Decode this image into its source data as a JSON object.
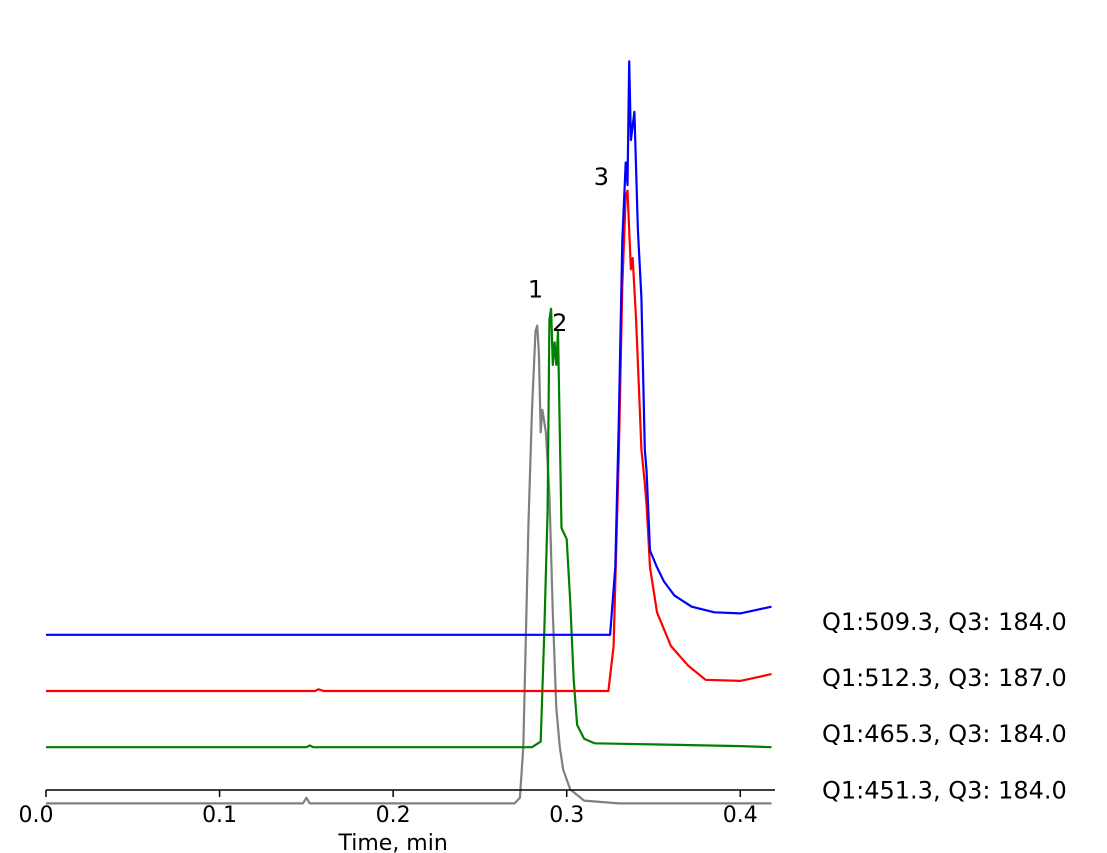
{
  "chart_data": {
    "type": "line",
    "xlabel": "Time, min",
    "ylabel": "",
    "xlim": [
      0.0,
      0.42
    ],
    "x_ticks": [
      0.0,
      0.1,
      0.2,
      0.3,
      0.4
    ],
    "x_tick_labels": [
      "0.0",
      "0.1",
      "0.2",
      "0.3",
      "0.4"
    ],
    "y_axis_shown": false,
    "grid": false,
    "layout": "stacked-offset traces",
    "series": [
      {
        "name": "Q1:509.3, Q3: 184.0",
        "color": "#0000ff",
        "baseline": 100,
        "points": [
          [
            0.0,
            100
          ],
          [
            0.31,
            100
          ],
          [
            0.325,
            100
          ],
          [
            0.328,
            220
          ],
          [
            0.33,
            480
          ],
          [
            0.332,
            800
          ],
          [
            0.334,
            940
          ],
          [
            0.335,
            900
          ],
          [
            0.336,
            1120
          ],
          [
            0.337,
            980
          ],
          [
            0.339,
            1030
          ],
          [
            0.341,
            820
          ],
          [
            0.343,
            700
          ],
          [
            0.345,
            430
          ],
          [
            0.346,
            390
          ],
          [
            0.348,
            250
          ],
          [
            0.352,
            220
          ],
          [
            0.356,
            195
          ],
          [
            0.362,
            170
          ],
          [
            0.372,
            150
          ],
          [
            0.385,
            140
          ],
          [
            0.4,
            138
          ],
          [
            0.418,
            150
          ]
        ]
      },
      {
        "name": "Q1:512.3, Q3: 187.0",
        "color": "#ff0000",
        "baseline": 0,
        "points": [
          [
            0.0,
            0
          ],
          [
            0.155,
            0
          ],
          [
            0.157,
            3
          ],
          [
            0.16,
            0
          ],
          [
            0.31,
            0
          ],
          [
            0.324,
            0
          ],
          [
            0.327,
            80
          ],
          [
            0.33,
            420
          ],
          [
            0.332,
            720
          ],
          [
            0.334,
            880
          ],
          [
            0.335,
            890
          ],
          [
            0.336,
            820
          ],
          [
            0.337,
            750
          ],
          [
            0.338,
            770
          ],
          [
            0.34,
            660
          ],
          [
            0.342,
            510
          ],
          [
            0.343,
            430
          ],
          [
            0.345,
            370
          ],
          [
            0.346,
            330
          ],
          [
            0.348,
            220
          ],
          [
            0.352,
            140
          ],
          [
            0.36,
            80
          ],
          [
            0.37,
            45
          ],
          [
            0.38,
            20
          ],
          [
            0.4,
            18
          ],
          [
            0.418,
            30
          ]
        ]
      },
      {
        "name": "Q1:465.3, Q3: 184.0",
        "color": "#008000",
        "baseline": -100,
        "points": [
          [
            0.0,
            -100
          ],
          [
            0.15,
            -100
          ],
          [
            0.152,
            -97
          ],
          [
            0.154,
            -100
          ],
          [
            0.28,
            -100
          ],
          [
            0.285,
            -90
          ],
          [
            0.287,
            100
          ],
          [
            0.289,
            320
          ],
          [
            0.29,
            660
          ],
          [
            0.291,
            680
          ],
          [
            0.292,
            580
          ],
          [
            0.293,
            620
          ],
          [
            0.294,
            580
          ],
          [
            0.295,
            640
          ],
          [
            0.297,
            290
          ],
          [
            0.3,
            270
          ],
          [
            0.302,
            160
          ],
          [
            0.304,
            20
          ],
          [
            0.306,
            -60
          ],
          [
            0.31,
            -85
          ],
          [
            0.316,
            -93
          ],
          [
            0.35,
            -95
          ],
          [
            0.4,
            -98
          ],
          [
            0.418,
            -100
          ]
        ]
      },
      {
        "name": "Q1:451.3, Q3: 184.0",
        "color": "#808080",
        "baseline": -200,
        "points": [
          [
            0.0,
            -200
          ],
          [
            0.148,
            -200
          ],
          [
            0.15,
            -190
          ],
          [
            0.152,
            -200
          ],
          [
            0.27,
            -200
          ],
          [
            0.273,
            -190
          ],
          [
            0.275,
            -100
          ],
          [
            0.278,
            300
          ],
          [
            0.28,
            500
          ],
          [
            0.282,
            640
          ],
          [
            0.283,
            650
          ],
          [
            0.284,
            600
          ],
          [
            0.285,
            460
          ],
          [
            0.286,
            500
          ],
          [
            0.288,
            460
          ],
          [
            0.29,
            350
          ],
          [
            0.292,
            140
          ],
          [
            0.294,
            -30
          ],
          [
            0.296,
            -100
          ],
          [
            0.298,
            -140
          ],
          [
            0.302,
            -175
          ],
          [
            0.31,
            -195
          ],
          [
            0.33,
            -200
          ],
          [
            0.418,
            -200
          ]
        ]
      }
    ],
    "peak_labels": [
      {
        "text": "1",
        "x": 0.282,
        "y": 700
      },
      {
        "text": "2",
        "x": 0.296,
        "y": 640
      },
      {
        "text": "3",
        "x": 0.32,
        "y": 900
      }
    ]
  }
}
